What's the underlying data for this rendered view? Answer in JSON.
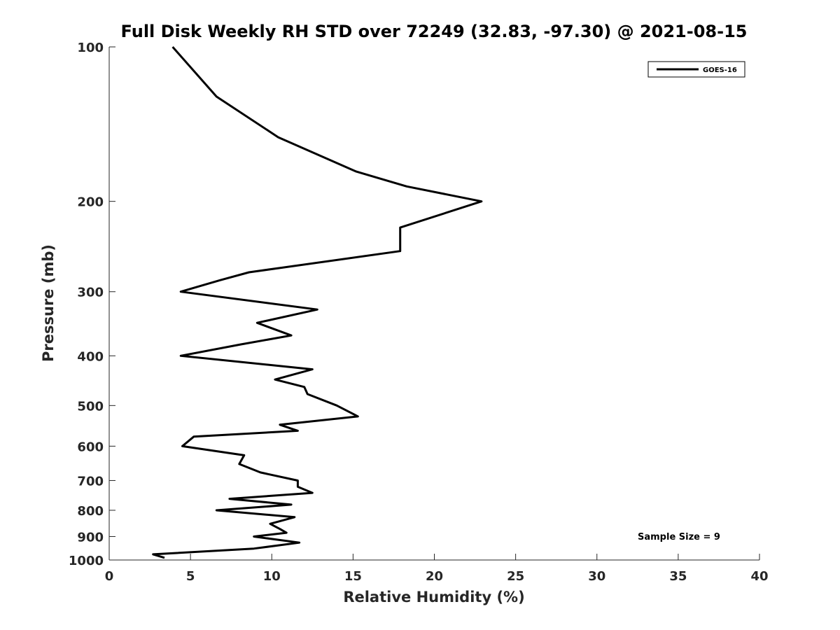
{
  "chart_data": {
    "type": "line",
    "title": "Full Disk Weekly RH STD over 72249 (32.83, -97.30) @ 2021-08-15",
    "xlabel": "Relative Humidity (%)",
    "ylabel": "Pressure (mb)",
    "xlim": [
      0,
      40
    ],
    "ylim": [
      100,
      1000
    ],
    "y_scale": "log",
    "y_reversed": true,
    "x_ticks": [
      "0",
      "5",
      "10",
      "15",
      "20",
      "25",
      "30",
      "35",
      "40"
    ],
    "y_ticks": [
      "100",
      "200",
      "300",
      "400",
      "500",
      "600",
      "700",
      "800",
      "900",
      "1000"
    ],
    "grid": false,
    "legend_position": "top-right",
    "series": [
      {
        "name": "GOES-16",
        "color": "#000000",
        "points": [
          [
            3.9,
            100
          ],
          [
            6.6,
            125
          ],
          [
            10.4,
            150
          ],
          [
            15.2,
            175
          ],
          [
            18.3,
            187
          ],
          [
            22.9,
            200
          ],
          [
            17.9,
            225
          ],
          [
            17.9,
            250
          ],
          [
            8.6,
            275
          ],
          [
            6.8,
            285
          ],
          [
            4.4,
            300
          ],
          [
            12.8,
            325
          ],
          [
            9.1,
            345
          ],
          [
            11.2,
            365
          ],
          [
            8.1,
            380
          ],
          [
            4.4,
            400
          ],
          [
            12.5,
            425
          ],
          [
            10.2,
            445
          ],
          [
            12.0,
            460
          ],
          [
            12.2,
            475
          ],
          [
            14.0,
            500
          ],
          [
            15.3,
            525
          ],
          [
            10.5,
            545
          ],
          [
            11.6,
            560
          ],
          [
            5.2,
            575
          ],
          [
            4.5,
            600
          ],
          [
            8.3,
            625
          ],
          [
            8.0,
            650
          ],
          [
            9.3,
            675
          ],
          [
            11.6,
            700
          ],
          [
            11.6,
            720
          ],
          [
            12.5,
            740
          ],
          [
            7.4,
            760
          ],
          [
            11.2,
            780
          ],
          [
            6.6,
            800
          ],
          [
            11.4,
            825
          ],
          [
            9.9,
            850
          ],
          [
            10.5,
            870
          ],
          [
            10.9,
            885
          ],
          [
            8.9,
            900
          ],
          [
            11.7,
            925
          ],
          [
            8.9,
            950
          ],
          [
            2.7,
            975
          ],
          [
            3.4,
            990
          ]
        ]
      }
    ],
    "annotations": [
      "Sample Size = 9"
    ]
  }
}
